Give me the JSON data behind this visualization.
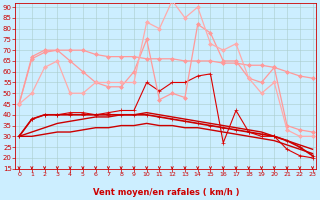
{
  "xlabel": "Vent moyen/en rafales ( km/h )",
  "bg_color": "#cceeff",
  "grid_color": "#aacccc",
  "x_values": [
    0,
    1,
    2,
    3,
    4,
    5,
    6,
    7,
    8,
    9,
    10,
    11,
    12,
    13,
    14,
    15,
    16,
    17,
    18,
    19,
    20,
    21,
    22,
    23
  ],
  "series": [
    {
      "name": "dark_spiky",
      "color": "#dd0000",
      "linewidth": 0.8,
      "marker": "+",
      "markersize": 3.0,
      "data": [
        30,
        38,
        40,
        40,
        41,
        41,
        40,
        41,
        42,
        42,
        55,
        51,
        55,
        55,
        58,
        59,
        27,
        42,
        32,
        30,
        30,
        24,
        21,
        20
      ]
    },
    {
      "name": "dark_diagonal1",
      "color": "#cc0000",
      "linewidth": 1.0,
      "marker": null,
      "markersize": 0,
      "data": [
        30,
        30,
        31,
        32,
        32,
        33,
        34,
        34,
        35,
        35,
        36,
        35,
        35,
        34,
        34,
        33,
        32,
        31,
        30,
        29,
        28,
        26,
        24,
        22
      ]
    },
    {
      "name": "dark_diagonal2",
      "color": "#cc0000",
      "linewidth": 1.0,
      "marker": null,
      "markersize": 0,
      "data": [
        30,
        32,
        34,
        36,
        37,
        38,
        39,
        39,
        40,
        40,
        41,
        40,
        39,
        38,
        37,
        36,
        35,
        34,
        33,
        32,
        30,
        28,
        26,
        24
      ]
    },
    {
      "name": "dark_declining",
      "color": "#cc0000",
      "linewidth": 1.2,
      "marker": "+",
      "markersize": 2.5,
      "data": [
        30,
        38,
        40,
        40,
        40,
        40,
        40,
        40,
        40,
        40,
        40,
        39,
        38,
        37,
        36,
        35,
        34,
        33,
        32,
        31,
        30,
        28,
        25,
        21
      ]
    },
    {
      "name": "light_flat_high",
      "color": "#ff9999",
      "linewidth": 0.9,
      "marker": "D",
      "markersize": 2.0,
      "data": [
        45,
        67,
        70,
        70,
        70,
        70,
        68,
        67,
        67,
        67,
        66,
        66,
        66,
        65,
        65,
        65,
        64,
        64,
        63,
        63,
        62,
        60,
        58,
        57
      ]
    },
    {
      "name": "light_zigzag",
      "color": "#ff9999",
      "linewidth": 0.9,
      "marker": "D",
      "markersize": 2.0,
      "data": [
        45,
        66,
        69,
        70,
        65,
        60,
        55,
        53,
        53,
        60,
        75,
        47,
        50,
        48,
        82,
        78,
        65,
        65,
        57,
        55,
        62,
        35,
        33,
        32
      ]
    },
    {
      "name": "light_big_peak",
      "color": "#ffaaaa",
      "linewidth": 0.9,
      "marker": "D",
      "markersize": 2.0,
      "data": [
        45,
        50,
        62,
        65,
        50,
        50,
        55,
        55,
        55,
        55,
        83,
        80,
        93,
        85,
        90,
        73,
        70,
        73,
        57,
        50,
        55,
        33,
        30,
        30
      ]
    }
  ],
  "ylim": [
    15,
    92
  ],
  "xlim": [
    -0.3,
    23.3
  ],
  "yticks": [
    15,
    20,
    25,
    30,
    35,
    40,
    45,
    50,
    55,
    60,
    65,
    70,
    75,
    80,
    85,
    90
  ],
  "xticks": [
    0,
    1,
    2,
    3,
    4,
    5,
    6,
    7,
    8,
    9,
    10,
    11,
    12,
    13,
    14,
    15,
    16,
    17,
    18,
    19,
    20,
    21,
    22,
    23
  ],
  "tick_color": "#cc0000",
  "label_color": "#cc0000",
  "spine_color": "#cc0000",
  "xlabel_fontsize": 6.0,
  "xtick_fontsize": 4.5,
  "ytick_fontsize": 5.0
}
